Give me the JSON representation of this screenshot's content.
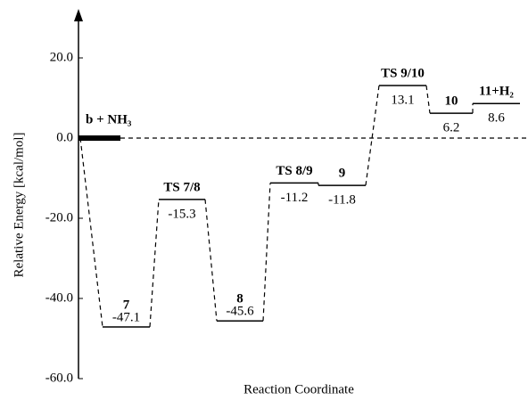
{
  "chart_data": {
    "type": "energy-diagram",
    "y_label": "Relative Energy [kcal/mol]",
    "x_label": "Reaction Coordinate",
    "categories": [
      "b + NH₃",
      "7",
      "TS 7/8",
      "8",
      "TS 8/9",
      "9",
      "TS 9/10",
      "10",
      "11+H₂"
    ],
    "values": [
      0,
      -47.1,
      -15.3,
      -45.6,
      -11.2,
      -11.8,
      13.1,
      6.2,
      8.6
    ],
    "value_labels": [
      null,
      "-47.1",
      "-15.3",
      "-45.6",
      "-11.2",
      "-11.8",
      "13.1",
      "6.2",
      "8.6"
    ],
    "color": "#000000",
    "ylim": [
      -60,
      30
    ],
    "yticks": [
      {
        "value": -60,
        "label": "-60.0"
      },
      {
        "value": -40,
        "label": "-40.0"
      },
      {
        "value": -20,
        "label": "-20.0"
      },
      {
        "value": 0,
        "label": "0.0"
      },
      {
        "value": 20,
        "label": "20.0"
      }
    ]
  }
}
